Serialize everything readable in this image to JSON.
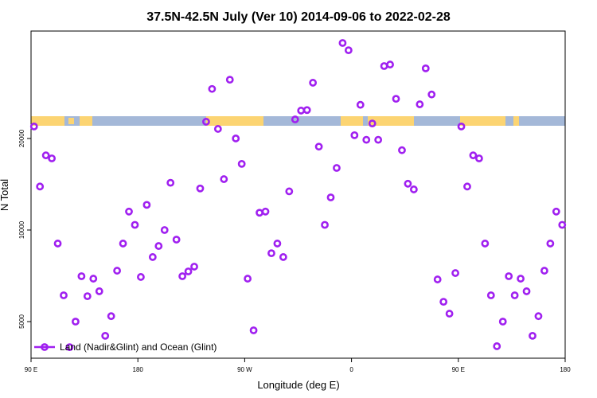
{
  "chart_data": {
    "type": "scatter",
    "title": "37.5N-42.5N July (Ver 10)   2014-09-06 to 2022-02-28",
    "x_label": "Longitude (deg E)",
    "y_label": "N Total",
    "log_y": true,
    "legend": "bottom-left",
    "xlim": [
      90,
      540
    ],
    "ylim": [
      3790,
      45100
    ],
    "xticks": [
      {
        "value": 90,
        "label": "90 E"
      },
      {
        "value": 180,
        "label": "180"
      },
      {
        "value": 270,
        "label": "90 W"
      },
      {
        "value": 360,
        "label": "0"
      },
      {
        "value": 450,
        "label": "90 E"
      },
      {
        "value": 540,
        "label": "180"
      }
    ],
    "yticks": [
      5000,
      10000,
      20000
    ],
    "series": [
      {
        "name": "Land (Nadir&Glint) and Ocean (Glint)",
        "color": "#a020f0",
        "x": [
          92.5,
          97.5,
          102.5,
          107.5,
          112.5,
          117.5,
          122.5,
          127.5,
          132.5,
          137.5,
          142.5,
          147.5,
          152.5,
          157.5,
          162.5,
          167.5,
          172.5,
          177.5,
          182.5,
          187.5,
          192.5,
          197.5,
          202.5,
          207.5,
          212.5,
          217.5,
          222.5,
          227.5,
          232.5,
          237.5,
          242.5,
          247.5,
          252.5,
          257.5,
          262.5,
          267.5,
          272.5,
          277.5,
          282.5,
          287.5,
          292.5,
          297.5,
          302.5,
          307.5,
          312.5,
          317.5,
          322.5,
          327.5,
          332.5,
          337.5,
          342.5,
          347.5,
          352.5,
          357.5,
          362.5,
          367.5,
          372.5,
          377.5,
          382.5,
          387.5,
          392.5,
          397.5,
          402.5,
          407.5,
          412.5,
          417.5,
          422.5,
          427.5,
          432.5,
          437.5,
          442.5,
          447.5,
          452.5,
          457.5,
          462.5,
          467.5,
          472.5,
          477.5,
          482.5,
          487.5,
          492.5,
          497.5,
          502.5,
          507.5,
          512.5,
          517.5,
          522.5,
          527.5,
          532.5,
          537.5
        ],
        "values": [
          21900,
          13900,
          17600,
          17200,
          9030,
          6100,
          4120,
          5000,
          7050,
          6060,
          6920,
          6290,
          4490,
          5210,
          7350,
          9030,
          11500,
          10400,
          7010,
          12100,
          8150,
          8860,
          10000,
          14300,
          9300,
          7050,
          7310,
          7580,
          13700,
          22700,
          29100,
          21500,
          14700,
          31200,
          20000,
          16500,
          6920,
          4680,
          11400,
          11500,
          8390,
          9030,
          8150,
          13400,
          23100,
          24700,
          24800,
          30500,
          18800,
          10400,
          12800,
          16000,
          41200,
          39000,
          20500,
          25800,
          19800,
          22400,
          19800,
          34600,
          35000,
          27000,
          18300,
          14200,
          13600,
          25900,
          34000,
          27900,
          6880,
          5810,
          5310,
          7220,
          21900,
          13900,
          17600,
          17200,
          9030,
          6100,
          4150,
          5000,
          7050,
          6100,
          6920,
          6290,
          4490,
          5210,
          7350,
          9030,
          11500,
          10400
        ]
      }
    ]
  }
}
